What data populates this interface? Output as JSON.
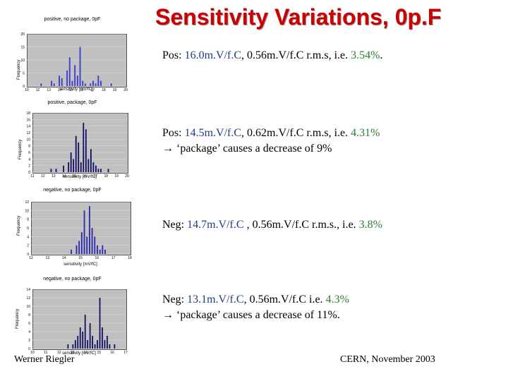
{
  "title": "Sensitivity Variations, 0p.F",
  "charts": [
    {
      "title": "positive, no package, 0pF",
      "xlabel": "sensitivity [mV/fC]",
      "ylabel": "Frequency",
      "yticks": [
        "20",
        "15",
        "10",
        "5",
        "0"
      ],
      "xticks": [
        "10",
        "12",
        "13",
        "14",
        "15",
        "16",
        "17",
        "18",
        "19",
        "20"
      ],
      "color": "#3b3bd0",
      "bars": [
        0,
        0,
        0,
        0,
        0,
        1,
        0,
        0,
        0,
        2,
        1,
        0,
        4,
        3,
        0,
        6,
        11,
        2,
        8,
        4,
        15,
        2,
        1,
        0,
        1,
        2,
        1,
        4,
        2,
        0,
        0,
        0,
        1,
        0,
        0,
        0,
        0,
        0
      ],
      "ymax": 20
    },
    {
      "title": "positive, package, 0pF",
      "xlabel": "sensitivity [mV/fC]",
      "ylabel": "Frequency",
      "yticks": [
        "18",
        "16",
        "14",
        "12",
        "10",
        "8",
        "6",
        "4",
        "2",
        "0"
      ],
      "xticks": [
        "11",
        "12",
        "13",
        "14",
        "15",
        "16",
        "17",
        "18",
        "19",
        "20"
      ],
      "color": "#0b0b60",
      "bars": [
        0,
        0,
        0,
        0,
        0,
        0,
        0,
        1,
        0,
        1,
        0,
        0,
        2,
        0,
        3,
        6,
        4,
        11,
        9,
        3,
        15,
        13,
        4,
        7,
        3,
        2,
        1,
        1,
        0,
        0,
        1,
        0,
        0,
        0,
        0,
        0,
        0,
        0
      ],
      "ymax": 18
    },
    {
      "title": "negative, no package, 0pF",
      "xlabel": "sensitivity [mV/fC]",
      "ylabel": "Frequency",
      "yticks": [
        "12",
        "10",
        "8",
        "6",
        "4",
        "2",
        "0"
      ],
      "xticks": [
        "12",
        "13",
        "14",
        "15",
        "16",
        "17",
        "18"
      ],
      "color": "#2b2baa",
      "bars": [
        0,
        0,
        0,
        0,
        0,
        0,
        0,
        0,
        0,
        0,
        0,
        0,
        0,
        0,
        0,
        1,
        0,
        2,
        3,
        5,
        10,
        4,
        11,
        6,
        4,
        2,
        1,
        2,
        1,
        0,
        0,
        0,
        0,
        0,
        0,
        0,
        0,
        0
      ],
      "ymax": 12
    },
    {
      "title": "negative, no package, 0pF",
      "xlabel": "sensitivity [mV/fC]",
      "ylabel": "Frequency",
      "yticks": [
        "14",
        "12",
        "10",
        "8",
        "6",
        "4",
        "2",
        "0"
      ],
      "xticks": [
        "10",
        "11",
        "12",
        "13",
        "14",
        "15",
        "16",
        "17"
      ],
      "color": "#0b0b60",
      "bars": [
        0,
        0,
        0,
        0,
        0,
        0,
        0,
        0,
        0,
        0,
        0,
        0,
        0,
        0,
        1,
        0,
        1,
        2,
        3,
        5,
        4,
        8,
        2,
        6,
        3,
        1,
        2,
        12,
        5,
        2,
        3,
        1,
        0,
        1,
        0,
        0,
        0,
        0
      ],
      "ymax": 14
    }
  ],
  "notes": [
    {
      "pre": "Pos: ",
      "value": "16.0m.V/f.C",
      "mid": ",  0.56m.V/f.C  r.m.s, i.e. ",
      "pct": "3.54%",
      "post": ".",
      "line2": ""
    },
    {
      "pre": "Pos: ",
      "value": "14.5m.V/f.C",
      "mid": ", 0.62m.V/f.C r.m.s, i.e. ",
      "pct": "4.31%",
      "post": "",
      "line2": "→ ‘package’ causes a decrease of 9%"
    },
    {
      "pre": "Neg: ",
      "value": "14.7m.V/f.C",
      "mid": " , 0.56m.V/f.C r.m.s., i.e. ",
      "pct": "3.8%",
      "post": "",
      "line2": ""
    },
    {
      "pre": "Neg: ",
      "value": "13.1m.V/f.C",
      "mid": ", 0.56m.V/f.C i.e. ",
      "pct": "4.3%",
      "post": "",
      "line2": "→ ‘package’ causes a decrease of 11%."
    }
  ],
  "footer": {
    "author": "Werner Riegler",
    "venue": "CERN, November 2003"
  }
}
